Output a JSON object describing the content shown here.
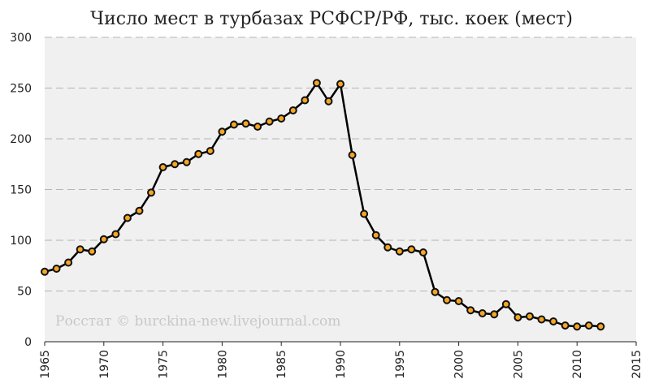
{
  "chart_data": {
    "type": "line",
    "title": "Число мест в турбазах РСФСР/РФ, тыс. коек (мест)",
    "xlabel": "",
    "ylabel": "",
    "watermark": "Росстат © burckina-new.livejournal.com",
    "xlim": [
      1965,
      2015
    ],
    "ylim": [
      0,
      300
    ],
    "xticks": [
      "1965",
      "1970",
      "1975",
      "1980",
      "1985",
      "1990",
      "1995",
      "2000",
      "2005",
      "2010",
      "2015"
    ],
    "yticks": [
      "0",
      "50",
      "100",
      "150",
      "200",
      "250",
      "300"
    ],
    "grid": "horizontal dashed",
    "background": "#f0f0f0",
    "line_color": "#000000",
    "marker_color": "#f5a623",
    "series": [
      {
        "x": [
          1965,
          1966,
          1967,
          1968,
          1969,
          1970,
          1971,
          1972,
          1973,
          1974,
          1975,
          1976,
          1977,
          1978,
          1979,
          1980,
          1981,
          1982,
          1983,
          1984,
          1985,
          1986,
          1987,
          1988,
          1989,
          1990,
          1991,
          1992,
          1993,
          1994,
          1995,
          1996,
          1997,
          1998,
          1999,
          2000,
          2001,
          2002,
          2003,
          2004,
          2005,
          2006,
          2007,
          2008,
          2009,
          2010,
          2011,
          2012
        ],
        "values": [
          69,
          72,
          78,
          91,
          89,
          101,
          106,
          122,
          129,
          147,
          172,
          175,
          177,
          185,
          188,
          207,
          214,
          215,
          212,
          217,
          220,
          228,
          238,
          255,
          237,
          254,
          184,
          126,
          105,
          93,
          89,
          91,
          88,
          49,
          41,
          40,
          31,
          28,
          27,
          37,
          24,
          25,
          22,
          20,
          16,
          15,
          16,
          15
        ]
      }
    ]
  }
}
